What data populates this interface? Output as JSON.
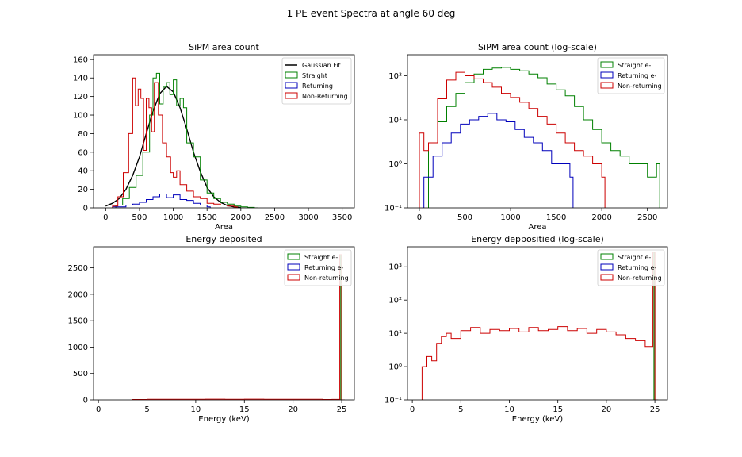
{
  "figure": {
    "suptitle": "1 PE event Spectra at angle 60 deg"
  },
  "chart_data": [
    {
      "type": "histogram",
      "title": "SiPM area count",
      "xlabel": "Area",
      "ylabel": "",
      "xlim": [
        -180,
        3680
      ],
      "ylim": [
        0,
        165
      ],
      "xticks": [
        0,
        500,
        1000,
        1500,
        2000,
        2500,
        3000,
        3500
      ],
      "yticks": [
        0,
        20,
        40,
        60,
        80,
        100,
        120,
        140,
        160
      ],
      "log_y": false,
      "legend_position": "top-right",
      "series": [
        {
          "name": "Gaussian Fit",
          "kind": "line",
          "color": "#000000",
          "x": [
            0,
            100,
            200,
            300,
            400,
            500,
            600,
            700,
            800,
            900,
            1000,
            1100,
            1200,
            1300,
            1400,
            1500,
            1600,
            1700,
            1800,
            1900,
            2000
          ],
          "y": [
            2,
            5,
            10,
            20,
            35,
            55,
            80,
            104,
            123,
            131,
            125,
            108,
            85,
            60,
            39,
            22,
            12,
            6,
            2.5,
            1,
            0.3
          ]
        },
        {
          "name": "Straight",
          "kind": "step",
          "color": "#008000",
          "x": [
            150,
            250,
            350,
            450,
            550,
            650,
            700,
            750,
            800,
            850,
            900,
            950,
            1000,
            1050,
            1100,
            1150,
            1200,
            1300,
            1400,
            1500,
            1600,
            1700,
            1800,
            1900,
            2000,
            2100,
            2200
          ],
          "y": [
            3,
            10,
            22,
            35,
            60,
            100,
            140,
            145,
            112,
            130,
            135,
            122,
            138,
            110,
            118,
            108,
            70,
            55,
            30,
            16,
            10,
            6,
            4,
            2,
            1,
            0.5,
            0
          ]
        },
        {
          "name": "Returning",
          "kind": "step",
          "color": "#0000bb",
          "x": [
            100,
            200,
            300,
            400,
            500,
            600,
            700,
            800,
            900,
            1000,
            1100,
            1200,
            1300,
            1400,
            1500
          ],
          "y": [
            1,
            1,
            3,
            4,
            6,
            9,
            12,
            15,
            11,
            14,
            9,
            8,
            5,
            3,
            1
          ]
        },
        {
          "name": "Non-Returning",
          "kind": "step",
          "color": "#cc0000",
          "x": [
            100,
            180,
            260,
            340,
            400,
            440,
            480,
            520,
            560,
            600,
            640,
            680,
            720,
            780,
            840,
            900,
            960,
            1000,
            1050,
            1100,
            1200,
            1300,
            1400,
            1500,
            1600,
            1700,
            1800,
            1900
          ],
          "y": [
            2,
            12,
            38,
            80,
            140,
            110,
            128,
            118,
            62,
            118,
            108,
            82,
            135,
            100,
            70,
            55,
            38,
            33,
            40,
            25,
            18,
            12,
            10,
            5,
            4,
            3,
            2,
            1
          ]
        }
      ]
    },
    {
      "type": "histogram",
      "title": "SiPM area count (log-scale)",
      "xlabel": "Area",
      "ylabel": "",
      "xlim": [
        -130,
        2720
      ],
      "ylim": [
        0.1,
        300
      ],
      "xticks": [
        0,
        500,
        1000,
        1500,
        2000,
        2500
      ],
      "yticks": [
        0.1,
        1,
        10,
        100
      ],
      "ytick_labels": [
        "10⁻¹",
        "10⁰",
        "10¹",
        "10²"
      ],
      "log_y": true,
      "legend_position": "top-right",
      "series": [
        {
          "name": "Straight e-",
          "kind": "step",
          "color": "#008000",
          "x": [
            100,
            200,
            300,
            400,
            500,
            600,
            700,
            800,
            900,
            1000,
            1100,
            1200,
            1300,
            1400,
            1500,
            1600,
            1700,
            1800,
            1900,
            2000,
            2100,
            2200,
            2300,
            2400,
            2500,
            2600
          ],
          "y": [
            3,
            9,
            20,
            40,
            70,
            110,
            140,
            150,
            155,
            140,
            130,
            110,
            90,
            65,
            48,
            35,
            20,
            10,
            6,
            3,
            2,
            1.5,
            1,
            1,
            0.5,
            1
          ]
        },
        {
          "name": "Returning e-",
          "kind": "step",
          "color": "#0000bb",
          "x": [
            50,
            150,
            250,
            350,
            450,
            550,
            650,
            750,
            850,
            950,
            1050,
            1150,
            1250,
            1350,
            1450,
            1550,
            1650
          ],
          "y": [
            0.5,
            1.5,
            3,
            5,
            8,
            10,
            12,
            14,
            10,
            9,
            6,
            4,
            3,
            2,
            1,
            1,
            0.5
          ]
        },
        {
          "name": "Non-returning",
          "kind": "step",
          "color": "#cc0000",
          "x": [
            0,
            50,
            100,
            200,
            300,
            400,
            500,
            600,
            700,
            800,
            900,
            1000,
            1100,
            1200,
            1300,
            1400,
            1500,
            1600,
            1700,
            1800,
            1900,
            2000
          ],
          "y": [
            5,
            2,
            3,
            30,
            80,
            120,
            100,
            85,
            70,
            55,
            40,
            32,
            25,
            18,
            12,
            8,
            5,
            3,
            2,
            1.5,
            1,
            0.5
          ]
        }
      ]
    },
    {
      "type": "histogram",
      "title": "Energy deposited",
      "xlabel": "Energy (keV)",
      "ylabel": "",
      "xlim": [
        -0.5,
        26.3
      ],
      "ylim": [
        0,
        2900
      ],
      "xticks": [
        0,
        5,
        10,
        15,
        20,
        25
      ],
      "yticks": [
        0,
        500,
        1000,
        1500,
        2000,
        2500
      ],
      "log_y": false,
      "legend_position": "top-right",
      "series": [
        {
          "name": "Straight e-",
          "kind": "step",
          "color": "#008000",
          "x": [
            24.9,
            25.0
          ],
          "y": [
            2750,
            0
          ]
        },
        {
          "name": "Returning e-",
          "kind": "step",
          "color": "#0000bb",
          "x": [
            24.9,
            25.0
          ],
          "y": [
            0,
            0
          ]
        },
        {
          "name": "Non-returning",
          "kind": "step",
          "color": "#cc0000",
          "x": [
            3.5,
            5,
            7,
            9,
            11,
            13,
            15,
            17,
            19,
            21,
            23,
            24,
            24.8,
            25.0
          ],
          "y": [
            8,
            10,
            12,
            11,
            13,
            12,
            14,
            12,
            11,
            10,
            8,
            9,
            2750,
            0
          ]
        }
      ]
    },
    {
      "type": "histogram",
      "title": "Energy deppositied (log-scale)",
      "xlabel": "Energy (keV)",
      "ylabel": "",
      "xlim": [
        -0.5,
        26.3
      ],
      "ylim": [
        0.1,
        4000
      ],
      "xticks": [
        0,
        5,
        10,
        15,
        20,
        25
      ],
      "yticks": [
        0.1,
        1,
        10,
        100,
        1000
      ],
      "ytick_labels": [
        "10⁻¹",
        "10⁰",
        "10¹",
        "10²",
        "10³"
      ],
      "log_y": true,
      "legend_position": "top-right",
      "series": [
        {
          "name": "Straight e-",
          "kind": "step",
          "color": "#008000",
          "x": [
            24.9,
            25.0
          ],
          "y": [
            2750,
            0.1
          ]
        },
        {
          "name": "Returning e-",
          "kind": "step",
          "color": "#0000bb",
          "x": [],
          "y": []
        },
        {
          "name": "Non-returning",
          "kind": "step",
          "color": "#cc0000",
          "x": [
            1.0,
            1.5,
            2.0,
            2.5,
            3.0,
            3.5,
            4.0,
            5,
            6,
            7,
            8,
            9,
            10,
            11,
            12,
            13,
            14,
            15,
            16,
            17,
            18,
            19,
            20,
            21,
            22,
            23,
            24,
            24.8,
            25.0
          ],
          "y": [
            1,
            2,
            1.5,
            5,
            8,
            10,
            7,
            12,
            15,
            10,
            13,
            12,
            14,
            11,
            15,
            12,
            13,
            16,
            12,
            14,
            10,
            13,
            11,
            9,
            7,
            6,
            4,
            2750,
            0.1
          ]
        }
      ]
    }
  ]
}
